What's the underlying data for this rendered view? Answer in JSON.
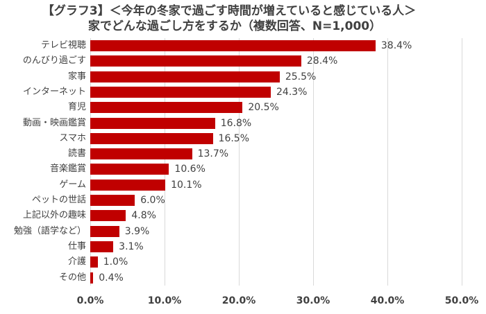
{
  "chart_data": {
    "type": "bar",
    "orientation": "horizontal",
    "title": "【グラフ3】＜今年の冬家で過ごす時間が増えていると感じている人＞",
    "subtitle": "家でどんな過ごし方をするか（複数回答、N=1,000）",
    "categories": [
      "テレビ視聴",
      "のんびり過ごす",
      "家事",
      "インターネット",
      "育児",
      "動画・映画鑑賞",
      "スマホ",
      "読書",
      "音楽鑑賞",
      "ゲーム",
      "ペットの世話",
      "上記以外の趣味",
      "勉強（語学など）",
      "仕事",
      "介護",
      "その他"
    ],
    "values": [
      38.4,
      28.4,
      25.5,
      24.3,
      20.5,
      16.8,
      16.5,
      13.7,
      10.6,
      10.1,
      6.0,
      4.8,
      3.9,
      3.1,
      1.0,
      0.4
    ],
    "labels": [
      "38.4%",
      "28.4%",
      "25.5%",
      "24.3%",
      "20.5%",
      "16.8%",
      "16.5%",
      "13.7%",
      "10.6%",
      "10.1%",
      "6.0%",
      "4.8%",
      "3.9%",
      "3.1%",
      "1.0%",
      "0.4%"
    ],
    "xlabel": "",
    "ylabel": "",
    "xlim": [
      0,
      50
    ],
    "x_ticks": [
      "0.0%",
      "10.0%",
      "20.0%",
      "30.0%",
      "40.0%",
      "50.0%"
    ],
    "grid": true,
    "bar_color": "#c00000",
    "legend": null
  }
}
